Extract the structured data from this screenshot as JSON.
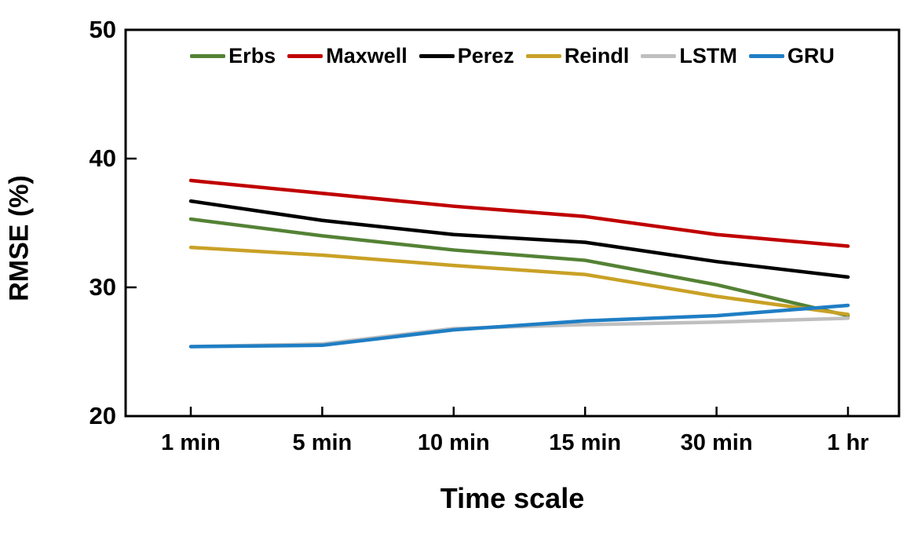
{
  "chart_data": {
    "type": "line",
    "title": "",
    "xlabel": "Time scale",
    "ylabel": "RMSE (%)",
    "categories": [
      "1 min",
      "5 min",
      "10 min",
      "15 min",
      "30 min",
      "1 hr"
    ],
    "ylim": [
      20,
      50
    ],
    "yticks": [
      20,
      30,
      40,
      50
    ],
    "ytick_minor": [
      30,
      40
    ],
    "grid": false,
    "legend_position": "top-inside",
    "axis_color": "#000000",
    "background_color": "#ffffff",
    "series": [
      {
        "name": "Erbs",
        "color": "#548235",
        "values": [
          35.3,
          34.0,
          32.9,
          32.1,
          30.2,
          27.8
        ]
      },
      {
        "name": "Maxwell",
        "color": "#C00000",
        "values": [
          38.3,
          37.3,
          36.3,
          35.5,
          34.1,
          33.2
        ]
      },
      {
        "name": "Perez",
        "color": "#000000",
        "values": [
          36.7,
          35.2,
          34.1,
          33.5,
          32.0,
          30.8
        ]
      },
      {
        "name": "Reindl",
        "color": "#C9A126",
        "values": [
          33.1,
          32.5,
          31.7,
          31.0,
          29.3,
          27.9
        ]
      },
      {
        "name": "LSTM",
        "color": "#BFBFBF",
        "values": [
          25.4,
          25.6,
          26.8,
          27.1,
          27.3,
          27.6
        ]
      },
      {
        "name": "GRU",
        "color": "#1F7EC4",
        "values": [
          25.4,
          25.5,
          26.7,
          27.4,
          27.8,
          28.6
        ]
      }
    ]
  }
}
